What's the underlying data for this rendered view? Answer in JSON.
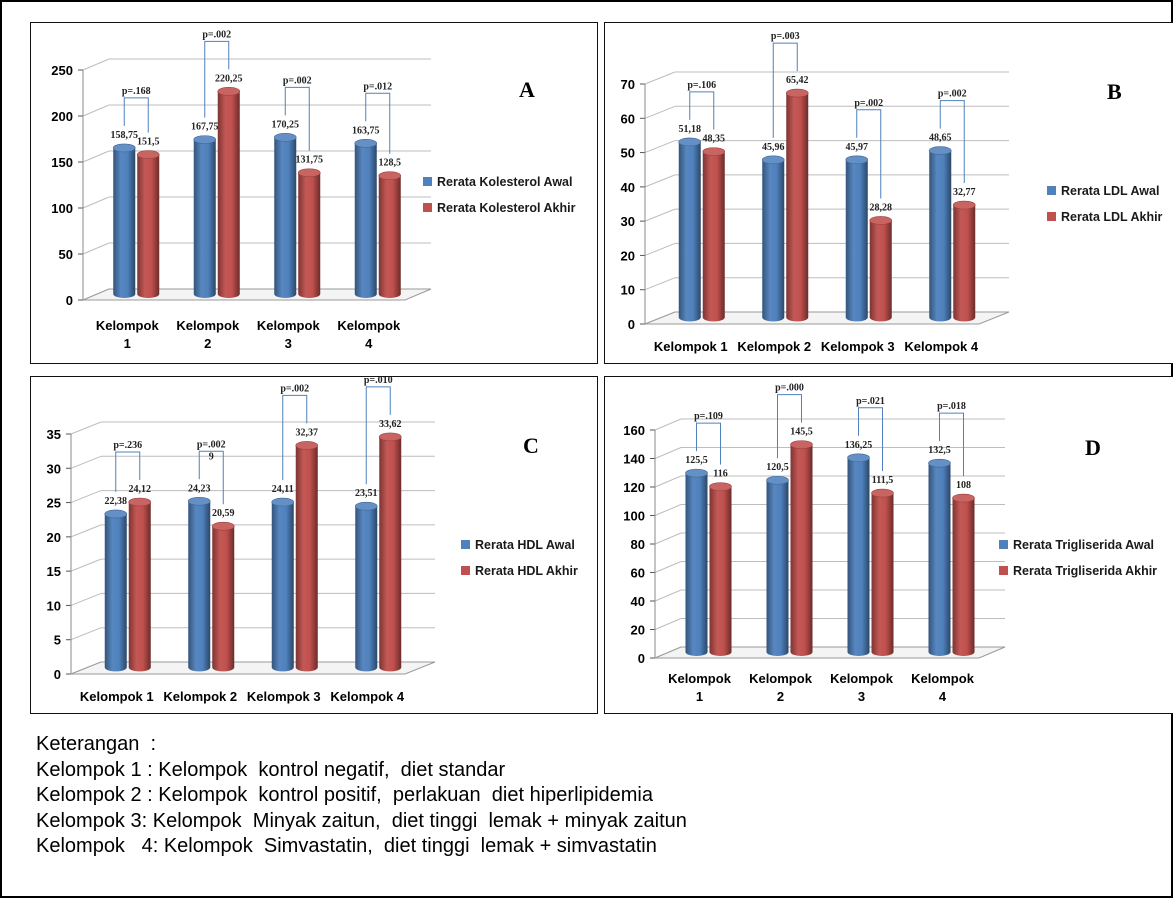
{
  "chart_data": [
    {
      "type": "bar",
      "panel_letter": "A",
      "categories": [
        "Kelompok 1",
        "Kelompok 2",
        "Kelompok 3",
        "Kelompok 4"
      ],
      "category_lines": [
        [
          "Kelompok",
          "1"
        ],
        [
          "Kelompok",
          "2"
        ],
        [
          "Kelompok",
          "3"
        ],
        [
          "Kelompok",
          "4"
        ]
      ],
      "series": [
        {
          "name": "Rerata Kolesterol Awal",
          "color": "#4f81bd",
          "values": [
            158.75,
            167.75,
            170.25,
            163.75
          ],
          "labels": [
            "158,75",
            "167,75",
            "170,25",
            "163,75"
          ]
        },
        {
          "name": "Rerata Kolesterol Akhir",
          "color": "#c0504d",
          "values": [
            151.5,
            220.25,
            131.75,
            128.5
          ],
          "labels": [
            "151,5",
            "220,25",
            "131,75",
            "128,5"
          ]
        }
      ],
      "p_values": [
        "p=.168",
        "p=.002",
        "p=.002",
        "p=.012"
      ],
      "ylim": [
        0,
        250
      ],
      "yticks": [
        0,
        50,
        100,
        150,
        200,
        250
      ],
      "legend_position": "right",
      "grid": true
    },
    {
      "type": "bar",
      "panel_letter": "B",
      "categories": [
        "Kelompok 1",
        "Kelompok 2",
        "Kelompok 3",
        "Kelompok 4"
      ],
      "category_lines": [
        [
          "Kelompok 1"
        ],
        [
          "Kelompok 2"
        ],
        [
          "Kelompok 3"
        ],
        [
          "Kelompok 4"
        ]
      ],
      "series": [
        {
          "name": "Rerata LDL Awal",
          "color": "#4f81bd",
          "values": [
            51.18,
            45.96,
            45.97,
            48.65
          ],
          "labels": [
            "51,18",
            "45,96",
            "45,97",
            "48,65"
          ]
        },
        {
          "name": "Rerata LDL Akhir",
          "color": "#c0504d",
          "values": [
            48.35,
            65.42,
            28.28,
            32.77
          ],
          "labels": [
            "48,35",
            "65,42",
            "28,28",
            "32,77"
          ]
        }
      ],
      "p_values": [
        "p=.106",
        "p=.003",
        "p=.002",
        "p=.002"
      ],
      "ylim": [
        0,
        70
      ],
      "yticks": [
        0,
        10,
        20,
        30,
        40,
        50,
        60,
        70
      ],
      "legend_position": "right",
      "grid": true
    },
    {
      "type": "bar",
      "panel_letter": "C",
      "categories": [
        "Kelompok 1",
        "Kelompok 2",
        "Kelompok 3",
        "Kelompok 4"
      ],
      "category_lines": [
        [
          "Kelompok 1"
        ],
        [
          "Kelompok 2"
        ],
        [
          "Kelompok 3"
        ],
        [
          "Kelompok 4"
        ]
      ],
      "series": [
        {
          "name": "Rerata HDL Awal",
          "color": "#4f81bd",
          "values": [
            22.38,
            24.23,
            24.11,
            23.51
          ],
          "labels": [
            "22,38",
            "24,23",
            "24,11",
            "23,51"
          ]
        },
        {
          "name": "Rerata HDL Akhir",
          "color": "#c0504d",
          "values": [
            24.12,
            20.59,
            32.37,
            33.62
          ],
          "labels": [
            "24,12",
            "20,59",
            "32,37",
            "33,62"
          ]
        }
      ],
      "p_values": [
        "p=.236",
        "p=.002\n9",
        "p=.002",
        "p=.010"
      ],
      "ylim": [
        0,
        35
      ],
      "yticks": [
        0,
        5,
        10,
        15,
        20,
        25,
        30,
        35
      ],
      "legend_position": "right",
      "grid": true
    },
    {
      "type": "bar",
      "panel_letter": "D",
      "categories": [
        "Kelompok 1",
        "Kelompok 2",
        "Kelompok 3",
        "Kelompok 4"
      ],
      "category_lines": [
        [
          "Kelompok",
          "1"
        ],
        [
          "Kelompok",
          "2"
        ],
        [
          "Kelompok",
          "3"
        ],
        [
          "Kelompok",
          "4"
        ]
      ],
      "series": [
        {
          "name": "Rerata Trigliserida Awal",
          "color": "#4f81bd",
          "values": [
            125.5,
            120.5,
            136.25,
            132.5
          ],
          "labels": [
            "125,5",
            "120,5",
            "136,25",
            "132,5"
          ]
        },
        {
          "name": "Rerata Trigliserida Akhir",
          "color": "#c0504d",
          "values": [
            116,
            145.5,
            111.5,
            108
          ],
          "labels": [
            "116",
            "145,5",
            "111,5",
            "108"
          ]
        }
      ],
      "p_values": [
        "p=.109",
        "p=.000",
        "p=.021",
        "p=.018"
      ],
      "ylim": [
        0,
        160
      ],
      "yticks": [
        0,
        20,
        40,
        60,
        80,
        100,
        120,
        140,
        160
      ],
      "legend_position": "right",
      "grid": true
    }
  ],
  "keterangan": {
    "title": "Keterangan  :",
    "lines": [
      "Kelompok 1 : Kelompok  kontrol negatif,  diet standar",
      "Kelompok 2 : Kelompok  kontrol positif,  perlakuan  diet hiperlipidemia",
      "Kelompok 3: Kelompok  Minyak zaitun,  diet tinggi  lemak + minyak zaitun",
      "Kelompok   4: Kelompok  Simvastatin,  diet tinggi  lemak + simvastatin"
    ]
  }
}
